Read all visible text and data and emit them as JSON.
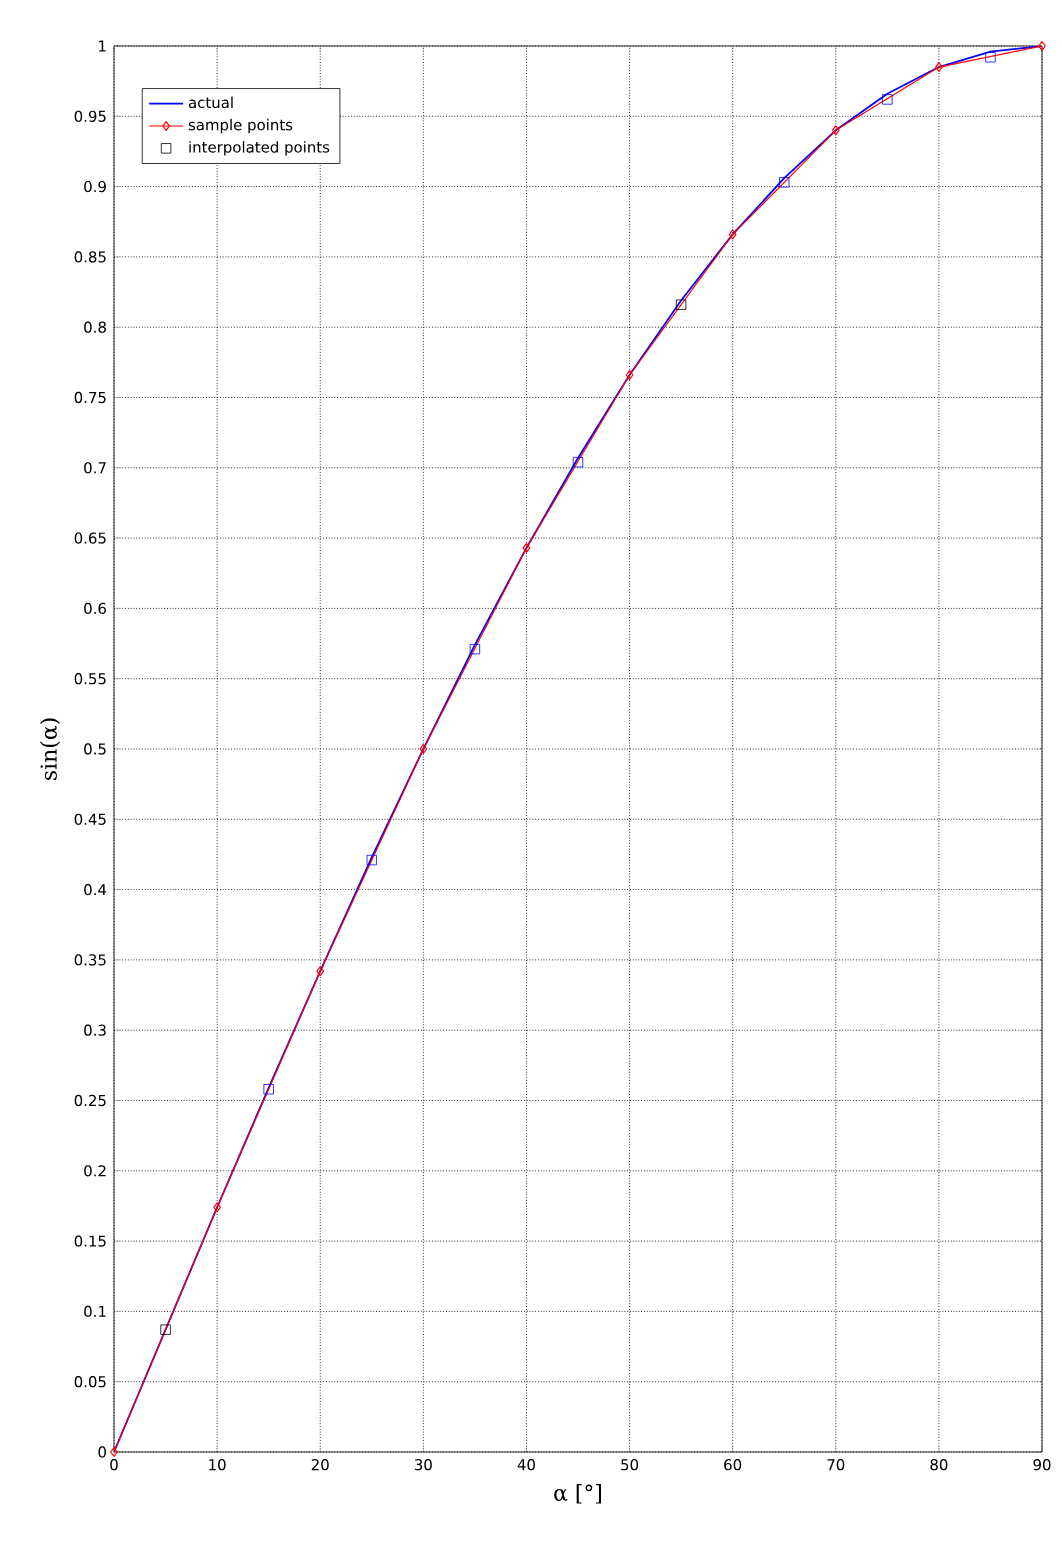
{
  "chart_data": {
    "type": "line",
    "xlabel": "α [°]",
    "ylabel": "sin(α)",
    "xlim": [
      0,
      90
    ],
    "ylim": [
      0,
      1
    ],
    "xticks": [
      0,
      10,
      20,
      30,
      40,
      50,
      60,
      70,
      80,
      90
    ],
    "yticks": [
      0,
      0.05,
      0.1,
      0.15,
      0.2,
      0.25,
      0.3,
      0.35,
      0.4,
      0.45,
      0.5,
      0.55,
      0.6,
      0.65,
      0.7,
      0.75,
      0.8,
      0.85,
      0.9,
      0.95,
      1
    ],
    "grid": true,
    "legend": "top left",
    "series": [
      {
        "name": "actual",
        "color": "#0000ff",
        "marker": "none",
        "x": [
          0,
          5,
          10,
          15,
          20,
          25,
          30,
          35,
          40,
          45,
          50,
          55,
          60,
          65,
          70,
          75,
          80,
          85,
          90
        ],
        "values": [
          0,
          0.087,
          0.174,
          0.259,
          0.342,
          0.423,
          0.5,
          0.574,
          0.643,
          0.707,
          0.766,
          0.819,
          0.866,
          0.906,
          0.94,
          0.966,
          0.985,
          0.996,
          1
        ]
      },
      {
        "name": "sample points",
        "color": "#ff0000",
        "marker": "diamond",
        "x": [
          0,
          10,
          20,
          30,
          40,
          50,
          60,
          70,
          80,
          90
        ],
        "values": [
          0,
          0.174,
          0.342,
          0.5,
          0.643,
          0.766,
          0.866,
          0.94,
          0.985,
          1
        ]
      },
      {
        "name": "interpolated points",
        "type": "scatter",
        "marker": "square",
        "colors": [
          "#000000",
          "#0000ff",
          "#0000ff",
          "#0000ff",
          "#0000ff",
          "#000000",
          "#0000ff",
          "#0000ff",
          "#0000ff"
        ],
        "x": [
          5,
          15,
          25,
          35,
          45,
          55,
          65,
          75,
          85
        ],
        "values": [
          0.087,
          0.258,
          0.421,
          0.571,
          0.704,
          0.816,
          0.903,
          0.962,
          0.992
        ]
      }
    ]
  }
}
